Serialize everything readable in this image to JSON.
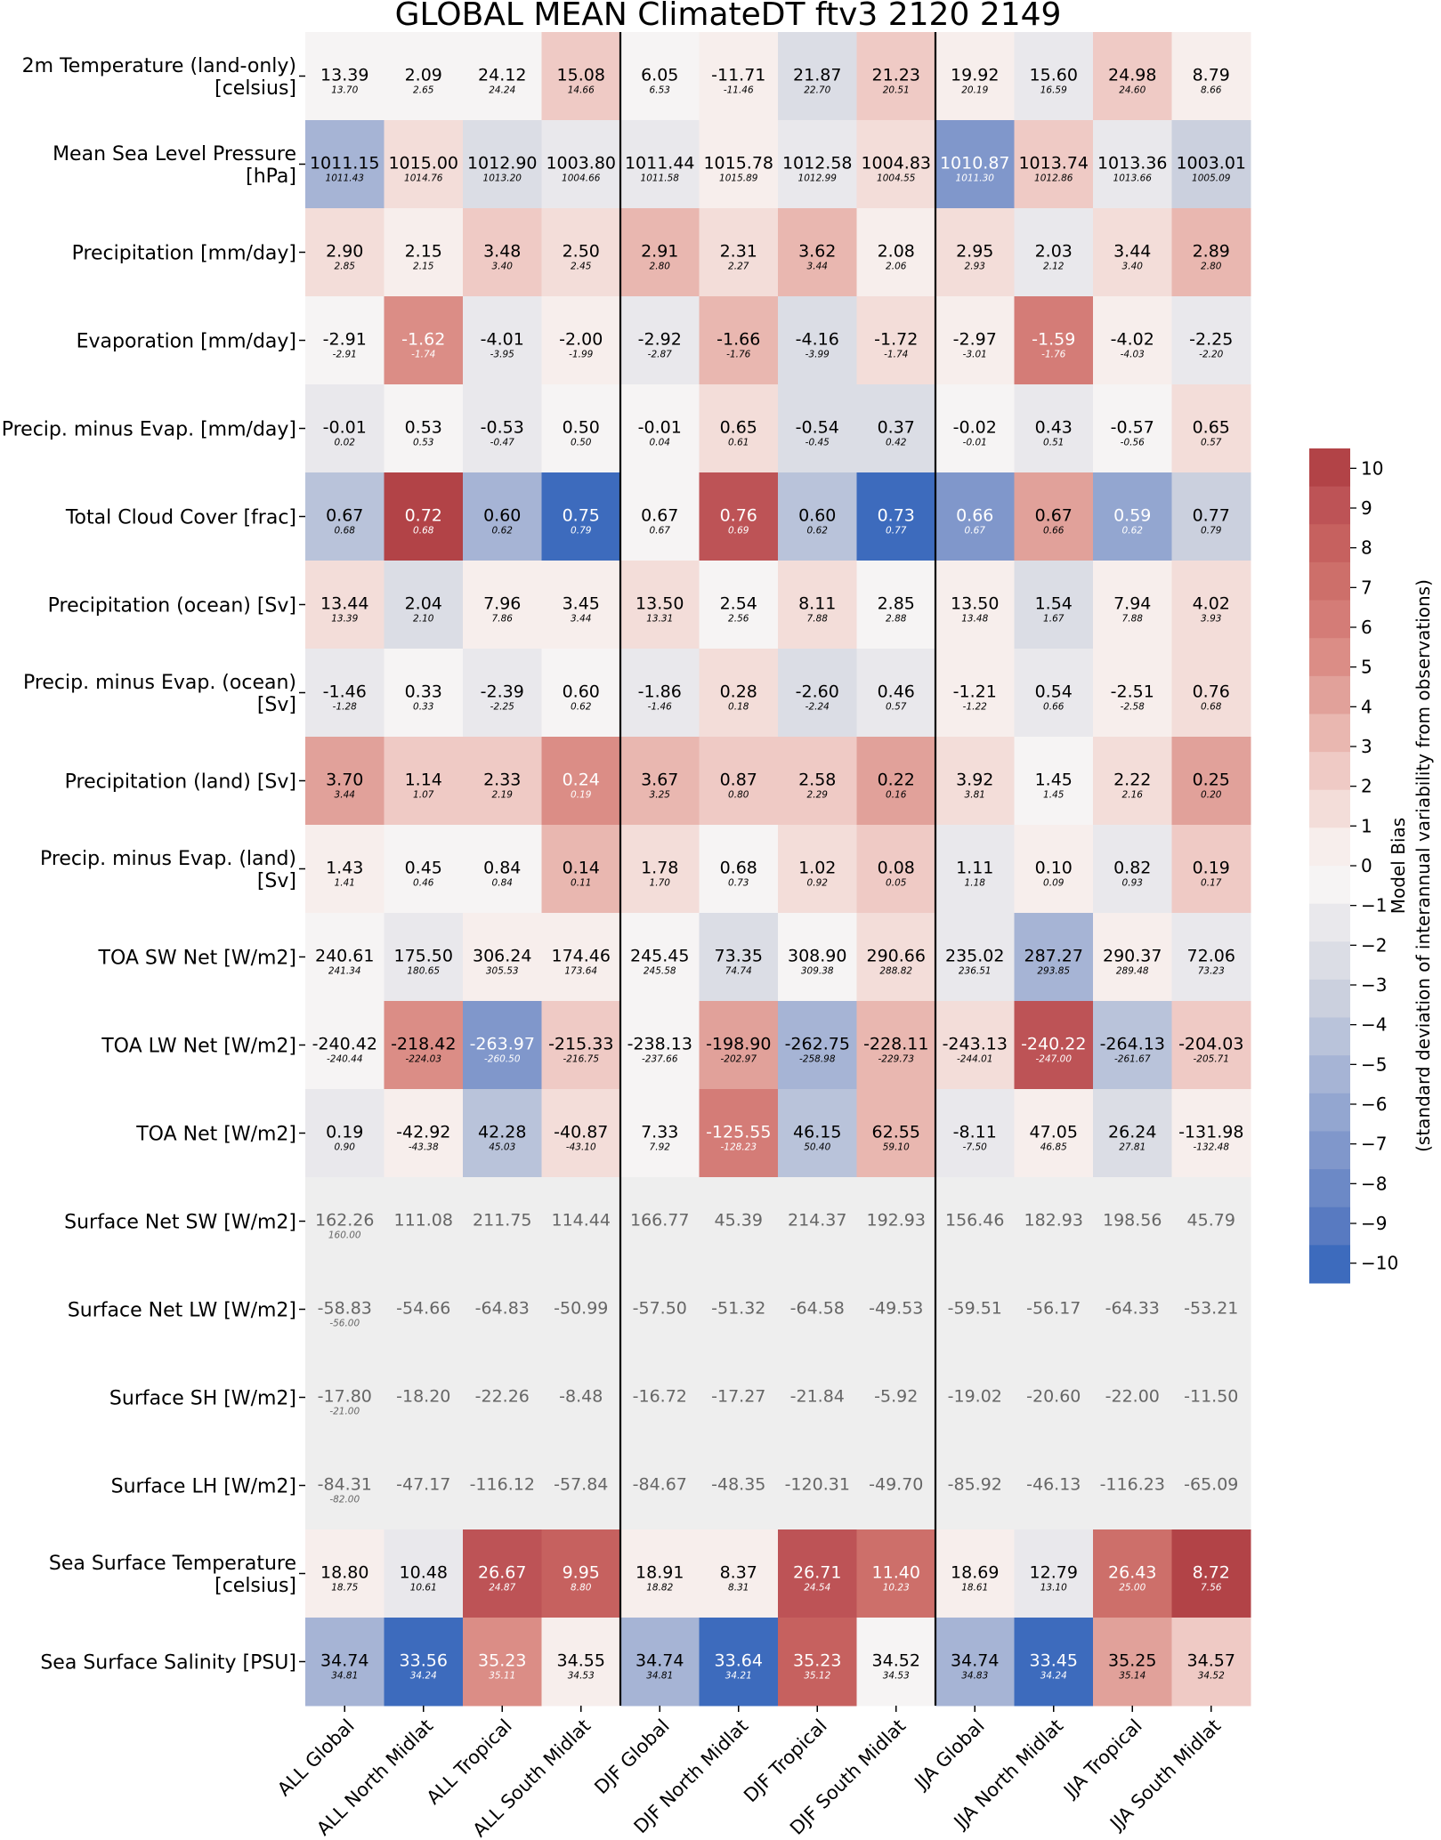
{
  "chart_data": {
    "type": "heatmap",
    "title": "GLOBAL MEAN ClimateDT ftv3 2120 2149",
    "columns": [
      "ALL Global",
      "ALL North Midlat",
      "ALL Tropical",
      "ALL South Midlat",
      "DJF Global",
      "DJF North Midlat",
      "DJF Tropical",
      "DJF South Midlat",
      "JJA Global",
      "JJA North Midlat",
      "JJA Tropical",
      "JJA South Midlat"
    ],
    "rows": [
      {
        "label": [
          "2m Temperature (land-only)",
          "[celsius]"
        ],
        "values": [
          "13.39",
          "2.09",
          "24.12",
          "15.08",
          "6.05",
          "-11.71",
          "21.87",
          "21.23",
          "19.92",
          "15.60",
          "24.98",
          "8.79"
        ],
        "refs": [
          "13.70",
          "2.65",
          "24.24",
          "14.66",
          "6.53",
          "-11.46",
          "22.70",
          "20.51",
          "20.19",
          "16.59",
          "24.60",
          "8.66"
        ],
        "bias": [
          -0.5,
          -0.3,
          -0.2,
          2.5,
          -0.3,
          0.6,
          -2.5,
          2.4,
          0.2,
          -1.5,
          2.3,
          0.5
        ]
      },
      {
        "label": [
          "Mean Sea Level Pressure",
          "[hPa]"
        ],
        "values": [
          "1011.15",
          "1015.00",
          "1012.90",
          "1003.80",
          "1011.44",
          "1015.78",
          "1012.58",
          "1004.83",
          "1010.87",
          "1013.74",
          "1013.36",
          "1003.01"
        ],
        "refs": [
          "1011.43",
          "1014.76",
          "1013.20",
          "1004.66",
          "1011.58",
          "1015.89",
          "1012.99",
          "1004.55",
          "1011.30",
          "1012.86",
          "1013.66",
          "1005.09"
        ],
        "bias": [
          -5,
          1.5,
          -2,
          -1,
          -1,
          0.2,
          -1,
          1,
          -7,
          2.8,
          -1.2,
          -3.5
        ]
      },
      {
        "label": [
          "Precipitation [mm/day]"
        ],
        "values": [
          "2.90",
          "2.15",
          "3.48",
          "2.50",
          "2.91",
          "2.31",
          "3.62",
          "2.08",
          "2.95",
          "2.03",
          "3.44",
          "2.89"
        ],
        "refs": [
          "2.85",
          "2.15",
          "3.40",
          "2.45",
          "2.80",
          "2.27",
          "3.44",
          "2.06",
          "2.93",
          "2.12",
          "3.40",
          "2.80"
        ],
        "bias": [
          1.5,
          0.5,
          2,
          1.5,
          3,
          1.5,
          3,
          0.8,
          1,
          -1.5,
          1.5,
          3
        ]
      },
      {
        "label": [
          "Evaporation [mm/day]"
        ],
        "values": [
          "-2.91",
          "-1.62",
          "-4.01",
          "-2.00",
          "-2.92",
          "-1.66",
          "-4.16",
          "-1.72",
          "-2.97",
          "-1.59",
          "-4.02",
          "-2.25"
        ],
        "refs": [
          "-2.91",
          "-1.74",
          "-3.95",
          "-1.99",
          "-2.87",
          "-1.76",
          "-3.99",
          "-1.74",
          "-3.01",
          "-1.76",
          "-4.03",
          "-2.20"
        ],
        "bias": [
          0,
          5.5,
          -1.2,
          0.1,
          -1.2,
          3,
          -2,
          1,
          0.8,
          6,
          0.3,
          -1.2
        ]
      },
      {
        "label": [
          "Precip. minus Evap. [mm/day]"
        ],
        "values": [
          "-0.01",
          "0.53",
          "-0.53",
          "0.50",
          "-0.01",
          "0.65",
          "-0.54",
          "0.37",
          "-0.02",
          "0.43",
          "-0.57",
          "0.65"
        ],
        "refs": [
          "0.02",
          "0.53",
          "-0.47",
          "0.50",
          "0.04",
          "0.61",
          "-0.45",
          "0.42",
          "-0.01",
          "0.51",
          "-0.56",
          "0.57"
        ],
        "bias": [
          -1,
          0,
          -1.5,
          0,
          -0.9,
          1,
          -2,
          -2,
          -0.5,
          -1.5,
          -0.2,
          1.2
        ]
      },
      {
        "label": [
          "Total Cloud Cover [frac]"
        ],
        "values": [
          "0.67",
          "0.72",
          "0.60",
          "0.75",
          "0.67",
          "0.76",
          "0.60",
          "0.73",
          "0.66",
          "0.67",
          "0.59",
          "0.77"
        ],
        "refs": [
          "0.68",
          "0.68",
          "0.62",
          "0.79",
          "0.67",
          "0.69",
          "0.62",
          "0.77",
          "0.67",
          "0.66",
          "0.62",
          "0.79"
        ],
        "bias": [
          -4,
          10,
          -5,
          -10,
          0,
          9.5,
          -4,
          -10,
          -7,
          4,
          -6,
          -3
        ]
      },
      {
        "label": [
          "Precipitation (ocean) [Sv]"
        ],
        "values": [
          "13.44",
          "2.04",
          "7.96",
          "3.45",
          "13.50",
          "2.54",
          "8.11",
          "2.85",
          "13.50",
          "1.54",
          "7.94",
          "4.02"
        ],
        "refs": [
          "13.39",
          "2.10",
          "7.86",
          "3.44",
          "13.31",
          "2.56",
          "7.88",
          "2.88",
          "13.48",
          "1.67",
          "7.88",
          "3.93"
        ],
        "bias": [
          1,
          -2,
          0.5,
          0.2,
          1.5,
          -0.3,
          1,
          -0.5,
          0.3,
          -2,
          0.6,
          1
        ]
      },
      {
        "label": [
          "Precip. minus Evap. (ocean)",
          "[Sv]"
        ],
        "values": [
          "-1.46",
          "0.33",
          "-2.39",
          "0.60",
          "-1.86",
          "0.28",
          "-2.60",
          "0.46",
          "-1.21",
          "0.54",
          "-2.51",
          "0.76"
        ],
        "refs": [
          "-1.28",
          "0.33",
          "-2.25",
          "0.62",
          "-1.46",
          "0.18",
          "-2.24",
          "0.57",
          "-1.22",
          "0.66",
          "-2.58",
          "0.68"
        ],
        "bias": [
          -1,
          0,
          -1,
          -0.3,
          -1.5,
          1.2,
          -2.5,
          -1,
          0.2,
          -1,
          0.6,
          1
        ]
      },
      {
        "label": [
          "Precipitation (land) [Sv]"
        ],
        "values": [
          "3.70",
          "1.14",
          "2.33",
          "0.24",
          "3.67",
          "0.87",
          "2.58",
          "0.22",
          "3.92",
          "1.45",
          "2.22",
          "0.25"
        ],
        "refs": [
          "3.44",
          "1.07",
          "2.19",
          "0.19",
          "3.25",
          "0.80",
          "2.29",
          "0.16",
          "3.81",
          "1.45",
          "2.16",
          "0.20"
        ],
        "bias": [
          4,
          2,
          2.5,
          5.5,
          3.5,
          2,
          2.5,
          4.5,
          1.5,
          0,
          1,
          4.5
        ]
      },
      {
        "label": [
          "Precip. minus Evap. (land)",
          "[Sv]"
        ],
        "values": [
          "1.43",
          "0.45",
          "0.84",
          "0.14",
          "1.78",
          "0.68",
          "1.02",
          "0.08",
          "1.11",
          "0.10",
          "0.82",
          "0.19"
        ],
        "refs": [
          "1.41",
          "0.46",
          "0.84",
          "0.11",
          "1.70",
          "0.73",
          "0.92",
          "0.05",
          "1.18",
          "0.09",
          "0.93",
          "0.17"
        ],
        "bias": [
          0.3,
          -0.3,
          0,
          3.5,
          1,
          -0.5,
          1.5,
          2,
          -1,
          0.5,
          -1,
          2
        ]
      },
      {
        "label": [
          "TOA SW Net [W/m2]"
        ],
        "values": [
          "240.61",
          "175.50",
          "306.24",
          "174.46",
          "245.45",
          "73.35",
          "308.90",
          "290.66",
          "235.02",
          "287.27",
          "290.37",
          "72.06"
        ],
        "refs": [
          "241.34",
          "180.65",
          "305.53",
          "173.64",
          "245.58",
          "74.74",
          "309.38",
          "288.82",
          "236.51",
          "293.85",
          "289.48",
          "73.23"
        ],
        "bias": [
          -0.5,
          -1.2,
          0.8,
          0.3,
          -0.2,
          -2,
          -0.4,
          1.5,
          -1,
          -5,
          0.5,
          -1.5
        ]
      },
      {
        "label": [
          "TOA LW Net [W/m2]"
        ],
        "values": [
          "-240.42",
          "-218.42",
          "-263.97",
          "-215.33",
          "-238.13",
          "-198.90",
          "-262.75",
          "-228.11",
          "-243.13",
          "-240.22",
          "-264.13",
          "-204.03"
        ],
        "refs": [
          "-240.44",
          "-224.03",
          "-260.50",
          "-216.75",
          "-237.66",
          "-202.97",
          "-258.98",
          "-229.73",
          "-244.01",
          "-247.00",
          "-261.67",
          "-205.71"
        ],
        "bias": [
          0,
          5,
          -7,
          2.5,
          -0.5,
          4,
          -5,
          3.5,
          1,
          9,
          -4,
          2
        ]
      },
      {
        "label": [
          "TOA Net [W/m2]"
        ],
        "values": [
          "0.19",
          "-42.92",
          "42.28",
          "-40.87",
          "7.33",
          "-125.55",
          "46.15",
          "62.55",
          "-8.11",
          "47.05",
          "26.24",
          "-131.98"
        ],
        "refs": [
          "0.90",
          "-43.38",
          "45.03",
          "-43.10",
          "7.92",
          "-128.23",
          "50.40",
          "59.10",
          "-7.50",
          "46.85",
          "27.81",
          "-132.48"
        ],
        "bias": [
          -1,
          0.5,
          -4,
          1.5,
          -0.5,
          6,
          -4.5,
          3.5,
          -1,
          0.2,
          -2,
          0.5
        ]
      },
      {
        "label": [
          "Surface Net SW [W/m2]"
        ],
        "values": [
          "162.26",
          "111.08",
          "211.75",
          "114.44",
          "166.77",
          "45.39",
          "214.37",
          "192.93",
          "156.46",
          "182.93",
          "198.56",
          "45.79"
        ],
        "refs": [
          "160.00",
          "",
          "",
          "",
          "",
          "",
          "",
          "",
          "",
          "",
          "",
          ""
        ],
        "bias": [
          null,
          null,
          null,
          null,
          null,
          null,
          null,
          null,
          null,
          null,
          null,
          null
        ]
      },
      {
        "label": [
          "Surface Net LW [W/m2]"
        ],
        "values": [
          "-58.83",
          "-54.66",
          "-64.83",
          "-50.99",
          "-57.50",
          "-51.32",
          "-64.58",
          "-49.53",
          "-59.51",
          "-56.17",
          "-64.33",
          "-53.21"
        ],
        "refs": [
          "-56.00",
          "",
          "",
          "",
          "",
          "",
          "",
          "",
          "",
          "",
          "",
          ""
        ],
        "bias": [
          null,
          null,
          null,
          null,
          null,
          null,
          null,
          null,
          null,
          null,
          null,
          null
        ]
      },
      {
        "label": [
          "Surface SH [W/m2]"
        ],
        "values": [
          "-17.80",
          "-18.20",
          "-22.26",
          "-8.48",
          "-16.72",
          "-17.27",
          "-21.84",
          "-5.92",
          "-19.02",
          "-20.60",
          "-22.00",
          "-11.50"
        ],
        "refs": [
          "-21.00",
          "",
          "",
          "",
          "",
          "",
          "",
          "",
          "",
          "",
          "",
          ""
        ],
        "bias": [
          null,
          null,
          null,
          null,
          null,
          null,
          null,
          null,
          null,
          null,
          null,
          null
        ]
      },
      {
        "label": [
          "Surface LH [W/m2]"
        ],
        "values": [
          "-84.31",
          "-47.17",
          "-116.12",
          "-57.84",
          "-84.67",
          "-48.35",
          "-120.31",
          "-49.70",
          "-85.92",
          "-46.13",
          "-116.23",
          "-65.09"
        ],
        "refs": [
          "-82.00",
          "",
          "",
          "",
          "",
          "",
          "",
          "",
          "",
          "",
          "",
          ""
        ],
        "bias": [
          null,
          null,
          null,
          null,
          null,
          null,
          null,
          null,
          null,
          null,
          null,
          null
        ]
      },
      {
        "label": [
          "Sea Surface Temperature",
          "[celsius]"
        ],
        "values": [
          "18.80",
          "10.48",
          "26.67",
          "9.95",
          "18.91",
          "8.37",
          "26.71",
          "11.40",
          "18.69",
          "12.79",
          "26.43",
          "8.72"
        ],
        "refs": [
          "18.75",
          "10.61",
          "24.87",
          "8.80",
          "18.82",
          "8.31",
          "24.54",
          "10.23",
          "18.61",
          "13.10",
          "25.00",
          "7.56"
        ],
        "bias": [
          0.3,
          -1,
          9,
          8,
          0.5,
          0.2,
          9,
          7.5,
          0.3,
          -1.5,
          7,
          10
        ]
      },
      {
        "label": [
          "Sea Surface Salinity [PSU]"
        ],
        "values": [
          "34.74",
          "33.56",
          "35.23",
          "34.55",
          "34.74",
          "33.64",
          "35.23",
          "34.52",
          "34.74",
          "33.45",
          "35.25",
          "34.57"
        ],
        "refs": [
          "34.81",
          "34.24",
          "35.11",
          "34.53",
          "34.81",
          "34.21",
          "35.12",
          "34.53",
          "34.83",
          "34.24",
          "35.14",
          "34.52"
        ],
        "bias": [
          -5,
          -10,
          5.5,
          0.5,
          -5,
          -10,
          8,
          -0.5,
          -5,
          -10,
          4,
          2
        ]
      }
    ],
    "colorbar": {
      "label": "Model Bias",
      "sublabel": "(standard deviation of interannual variability from observations)",
      "vmin": -10.5,
      "vmax": 10.5,
      "ticks": [
        "10",
        "9",
        "8",
        "7",
        "6",
        "5",
        "4",
        "3",
        "2",
        "1",
        "0",
        "−1",
        "−2",
        "−3",
        "−4",
        "−5",
        "−6",
        "−7",
        "−8",
        "−9",
        "−10"
      ],
      "colors": [
        "#b24347",
        "#bd5356",
        "#c6615f",
        "#cd6f6a",
        "#d47c77",
        "#db8d86",
        "#e1a19a",
        "#e9b7b0",
        "#efcac5",
        "#f3ddd9",
        "#f7eeec",
        "#f6f4f4",
        "#e9e8ec",
        "#dbdde5",
        "#cbd0de",
        "#b9c3da",
        "#a6b4d5",
        "#93a6d0",
        "#8097cb",
        "#6c89c6",
        "#587ac1",
        "#3d6bbd"
      ]
    },
    "no_data_color": "#eeeeee"
  }
}
